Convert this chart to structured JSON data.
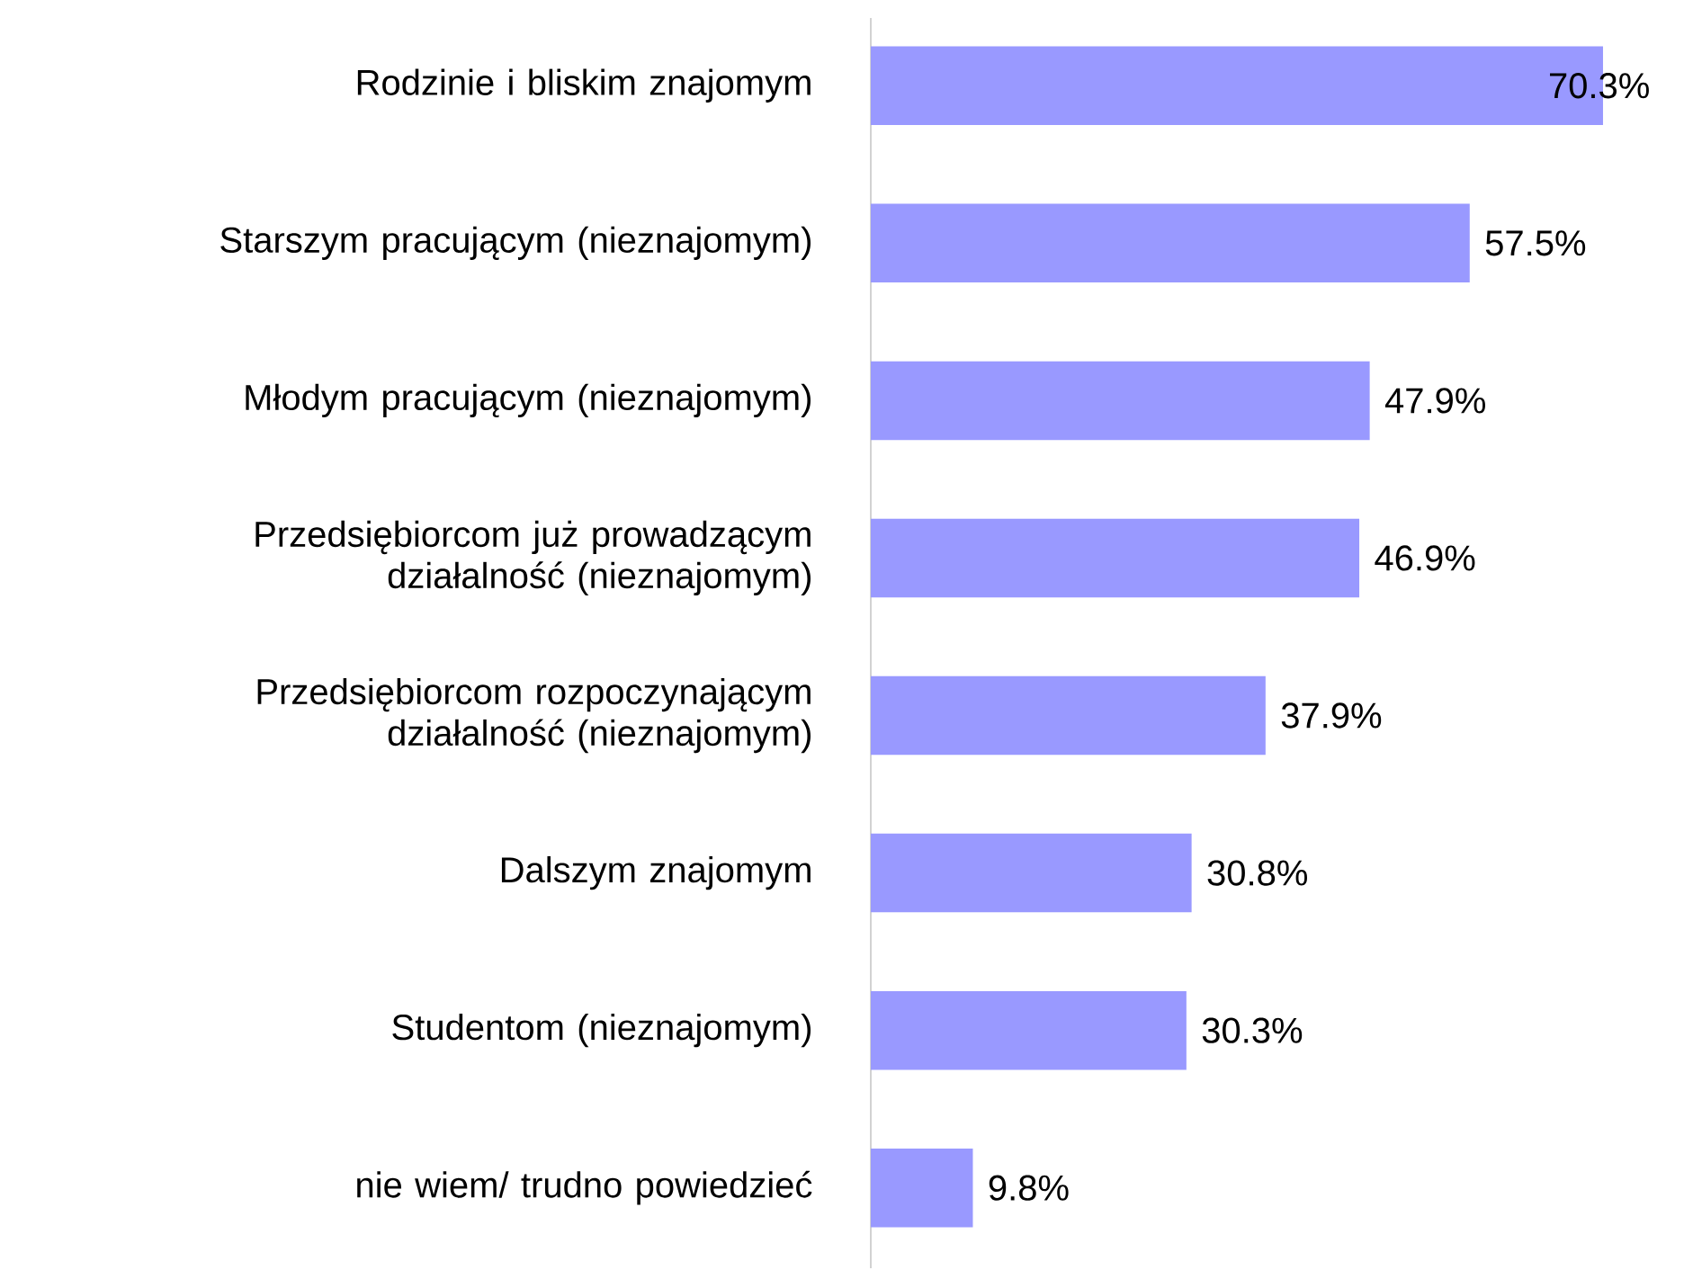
{
  "chart_data": {
    "type": "bar",
    "orientation": "horizontal",
    "categories": [
      "Rodzinie i bliskim znajomym",
      "Starszym pracującym (nieznajomym)",
      "Młodym pracującym (nieznajomym)",
      "Przedsiębiorcom już prowadzącym działalność (nieznajomym)",
      "Przedsiębiorcom rozpoczynającym działalność (nieznajomym)",
      "Dalszym znajomym",
      "Studentom (nieznajomym)",
      "nie wiem/ trudno powiedzieć"
    ],
    "values": [
      70.3,
      57.5,
      47.9,
      46.9,
      37.9,
      30.8,
      30.3,
      9.8
    ],
    "value_labels": [
      "70.3%",
      "57.5%",
      "47.9%",
      "46.9%",
      "37.9%",
      "30.8%",
      "30.3%",
      "9.8%"
    ],
    "color": "#9999ff"
  }
}
